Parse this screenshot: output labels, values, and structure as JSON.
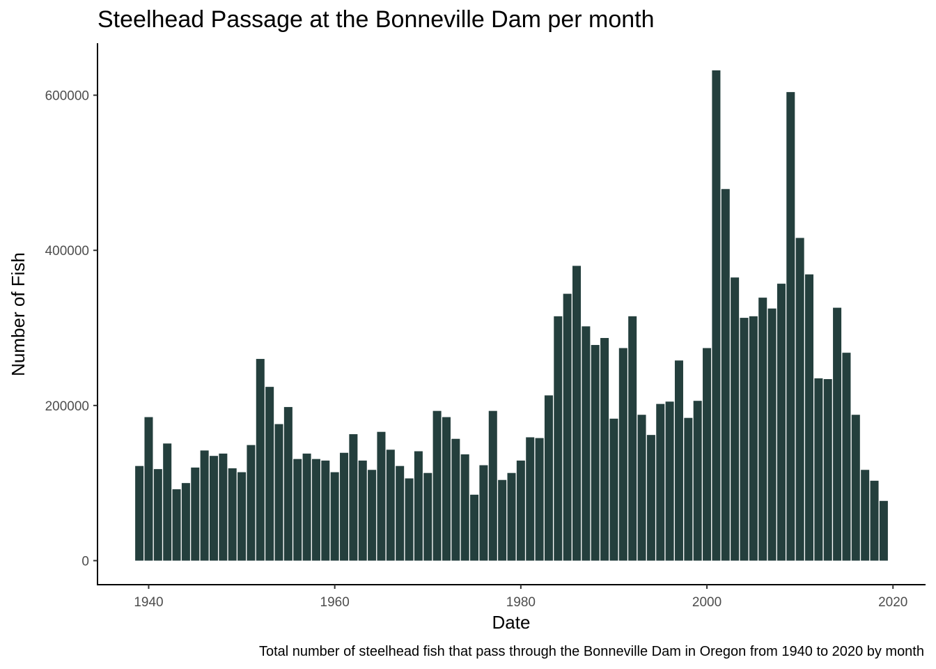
{
  "chart_data": {
    "type": "bar",
    "title": "Steelhead Passage at the Bonneville Dam per month",
    "xlabel": "Date",
    "ylabel": "Number of Fish",
    "caption": "Total number of steelhead fish that pass through the Bonneville Dam in Oregon from 1940 to 2020 by month",
    "xlim": [
      1934.5,
      2023.5
    ],
    "ylim": [
      -31000,
      667000
    ],
    "x_ticks": [
      1940,
      1960,
      1980,
      2000,
      2020
    ],
    "y_ticks": [
      0,
      200000,
      400000,
      600000
    ],
    "grid": false,
    "bar_color": "#243f3d",
    "x": [
      1939,
      1940,
      1941,
      1942,
      1943,
      1944,
      1945,
      1946,
      1947,
      1948,
      1949,
      1950,
      1951,
      1952,
      1953,
      1954,
      1955,
      1956,
      1957,
      1958,
      1959,
      1960,
      1961,
      1962,
      1963,
      1964,
      1965,
      1966,
      1967,
      1968,
      1969,
      1970,
      1971,
      1972,
      1973,
      1974,
      1975,
      1976,
      1977,
      1978,
      1979,
      1980,
      1981,
      1982,
      1983,
      1984,
      1985,
      1986,
      1987,
      1988,
      1989,
      1990,
      1991,
      1992,
      1993,
      1994,
      1995,
      1996,
      1997,
      1998,
      1999,
      2000,
      2001,
      2002,
      2003,
      2004,
      2005,
      2006,
      2007,
      2008,
      2009,
      2010,
      2011,
      2012,
      2013,
      2014,
      2015,
      2016,
      2017,
      2018,
      2019
    ],
    "values": [
      122000,
      185000,
      118000,
      151000,
      92000,
      100000,
      120000,
      142000,
      135000,
      138000,
      119000,
      114000,
      149000,
      260000,
      224000,
      176000,
      198000,
      131000,
      138000,
      131000,
      129000,
      114000,
      139000,
      163000,
      129000,
      117000,
      166000,
      143000,
      122000,
      106000,
      141000,
      113000,
      193000,
      185000,
      157000,
      137000,
      85000,
      123000,
      193000,
      104000,
      113000,
      129000,
      159000,
      158000,
      213000,
      315000,
      344000,
      380000,
      302000,
      278000,
      287000,
      183000,
      274000,
      315000,
      188000,
      162000,
      202000,
      205000,
      258000,
      184000,
      206000,
      274000,
      632000,
      479000,
      365000,
      313000,
      315000,
      339000,
      325000,
      357000,
      604000,
      416000,
      369000,
      235000,
      234000,
      326000,
      268000,
      188000,
      117000,
      103000,
      77000
    ]
  }
}
